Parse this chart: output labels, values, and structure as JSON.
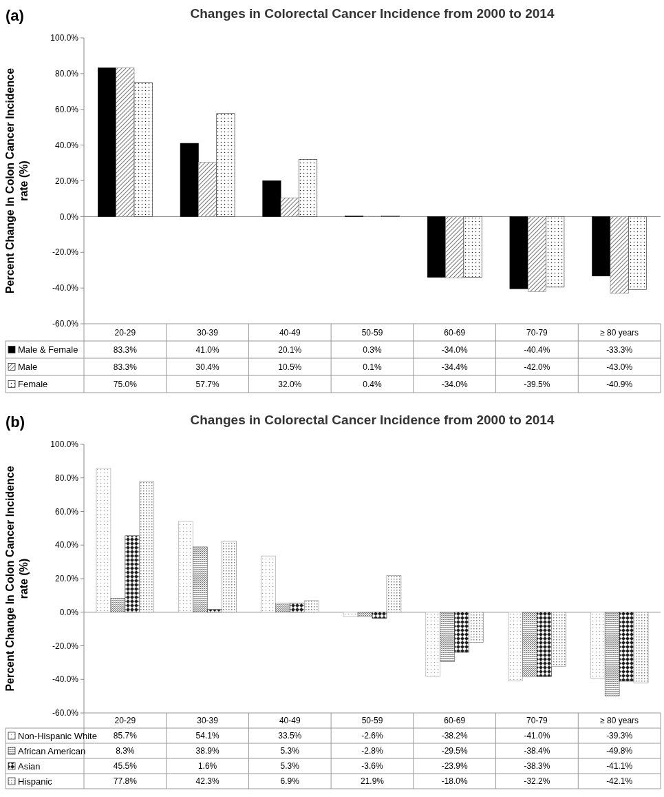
{
  "chart_data": [
    {
      "type": "bar",
      "title": "Changes in Colorectal Cancer Incidence from 2000 to 2014",
      "ylabel": "Percent Change In Colon Cancer Incidence rate (%)",
      "annotations": [
        "(a)"
      ],
      "categories": [
        "20-29",
        "30-39",
        "40-49",
        "50-59",
        "60-69",
        "70-79",
        "≥ 80 years"
      ],
      "series": [
        {
          "name": "Male & Female",
          "color": "#000000",
          "values": [
            83.3,
            41.0,
            20.1,
            0.3,
            -34.0,
            -40.4,
            -33.3
          ],
          "value_labels": [
            "83.3%",
            "41.0%",
            "20.1%",
            "0.3%",
            "-34.0%",
            "-40.4%",
            "-33.3%"
          ]
        },
        {
          "name": "Male",
          "color": "#7f7f7f",
          "values": [
            83.3,
            30.4,
            10.5,
            0.1,
            -34.4,
            -42.0,
            -43.0
          ],
          "value_labels": [
            "83.3%",
            "30.4%",
            "10.5%",
            "0.1%",
            "-34.4%",
            "-42.0%",
            "-43.0%"
          ]
        },
        {
          "name": "Female",
          "color": "#202020",
          "values": [
            75.0,
            57.7,
            32.0,
            0.4,
            -34.0,
            -39.5,
            -40.9
          ],
          "value_labels": [
            "75.0%",
            "57.7%",
            "32.0%",
            "0.4%",
            "-34.0%",
            "-39.5%",
            "-40.9%"
          ]
        }
      ],
      "ylim": [
        -60,
        100
      ],
      "yticks": [
        {
          "value": -60,
          "label": "-60.0%"
        },
        {
          "value": -40,
          "label": "-40.0%"
        },
        {
          "value": -20,
          "label": "-20.0%"
        },
        {
          "value": 0,
          "label": "0.0%"
        },
        {
          "value": 20,
          "label": "20.0%"
        },
        {
          "value": 40,
          "label": "40.0%"
        },
        {
          "value": 60,
          "label": "60.0%"
        },
        {
          "value": 80,
          "label": "80.0%"
        },
        {
          "value": 100,
          "label": "100.0%"
        }
      ],
      "legend": "bottom"
    },
    {
      "type": "bar",
      "title": "Changes in Colorectal Cancer Incidence from 2000 to 2014",
      "ylabel": "Percent Change In Colon Cancer Incidence rate (%)",
      "annotations": [
        "(b)"
      ],
      "categories": [
        "20-29",
        "30-39",
        "40-49",
        "50-59",
        "60-69",
        "70-79",
        "≥ 80 years"
      ],
      "series": [
        {
          "name": "Non-Hispanic White",
          "color": "#a0a0a0",
          "values": [
            85.7,
            54.1,
            33.5,
            -2.6,
            -38.2,
            -41.0,
            -39.3
          ],
          "value_labels": [
            "85.7%",
            "54.1%",
            "33.5%",
            "-2.6%",
            "-38.2%",
            "-41.0%",
            "-39.3%"
          ]
        },
        {
          "name": "African American",
          "color": "#606060",
          "values": [
            8.3,
            38.9,
            5.3,
            -2.8,
            -29.5,
            -38.4,
            -49.8
          ],
          "value_labels": [
            "8.3%",
            "38.9%",
            "5.3%",
            "-2.8%",
            "-29.5%",
            "-38.4%",
            "-49.8%"
          ]
        },
        {
          "name": "Asian",
          "color": "#202020",
          "values": [
            45.5,
            1.6,
            5.3,
            -3.6,
            -23.9,
            -38.3,
            -41.1
          ],
          "value_labels": [
            "45.5%",
            "1.6%",
            "5.3%",
            "-3.6%",
            "-23.9%",
            "-38.3%",
            "-41.1%"
          ]
        },
        {
          "name": "Hispanic",
          "color": "#808080",
          "values": [
            77.8,
            42.3,
            6.9,
            21.9,
            -18.0,
            -32.2,
            -42.1
          ],
          "value_labels": [
            "77.8%",
            "42.3%",
            "6.9%",
            "21.9%",
            "-18.0%",
            "-32.2%",
            "-42.1%"
          ]
        }
      ],
      "ylim": [
        -60,
        100
      ],
      "yticks": [
        {
          "value": -60,
          "label": "-60.0%"
        },
        {
          "value": -40,
          "label": "-40.0%"
        },
        {
          "value": -20,
          "label": "-20.0%"
        },
        {
          "value": 0,
          "label": "0.0%"
        },
        {
          "value": 20,
          "label": "20.0%"
        },
        {
          "value": 40,
          "label": "40.0%"
        },
        {
          "value": 60,
          "label": "60.0%"
        },
        {
          "value": 80,
          "label": "80.0%"
        },
        {
          "value": 100,
          "label": "100.0%"
        }
      ],
      "legend": "bottom"
    }
  ]
}
